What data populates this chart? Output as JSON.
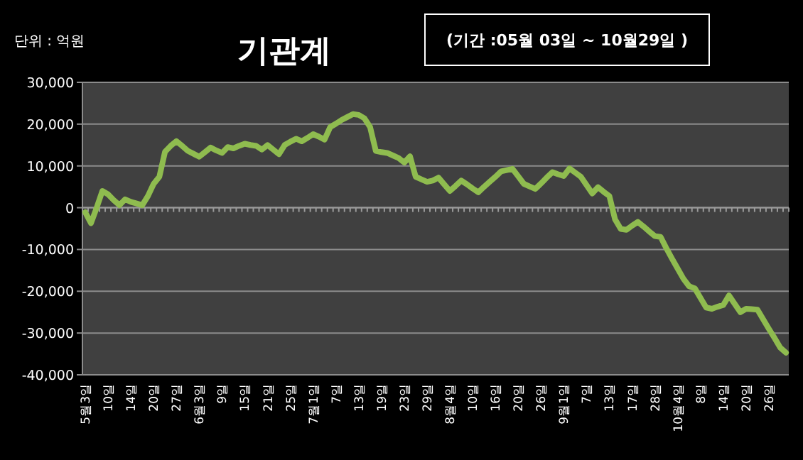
{
  "chart_data": {
    "type": "line",
    "title": "기관계",
    "annotations": [
      "단위 : 억원",
      "(기간 :05월 03일 ~ 10월29일 )"
    ],
    "categories": [
      "5월3일",
      null,
      null,
      null,
      "10일",
      null,
      null,
      null,
      "14일",
      null,
      null,
      null,
      "20일",
      null,
      null,
      null,
      "27일",
      null,
      null,
      null,
      "6월3일",
      null,
      null,
      null,
      "9일",
      null,
      null,
      null,
      "15일",
      null,
      null,
      null,
      "21일",
      null,
      null,
      null,
      "25일",
      null,
      null,
      null,
      "7월1일",
      null,
      null,
      null,
      "7일",
      null,
      null,
      null,
      "13일",
      null,
      null,
      null,
      "19일",
      null,
      null,
      null,
      "23일",
      null,
      null,
      null,
      "29일",
      null,
      null,
      null,
      "8월4일",
      null,
      null,
      null,
      "10일",
      null,
      null,
      null,
      "16일",
      null,
      null,
      null,
      "20일",
      null,
      null,
      null,
      "26일",
      null,
      null,
      null,
      "9월1일",
      null,
      null,
      null,
      "7일",
      null,
      null,
      null,
      "13일",
      null,
      null,
      null,
      "17일",
      null,
      null,
      null,
      "28일",
      null,
      null,
      null,
      "10월4일",
      null,
      null,
      null,
      "8일",
      null,
      null,
      null,
      "14일",
      null,
      null,
      null,
      "20일",
      null,
      null,
      null,
      "26일",
      null,
      null,
      null
    ],
    "series": [
      {
        "color": "#8fbc4f",
        "values": [
          -1100,
          -3700,
          0,
          4000,
          3200,
          1800,
          600,
          2000,
          1400,
          1000,
          600,
          2800,
          5700,
          7400,
          13400,
          14800,
          15900,
          14800,
          13600,
          12900,
          12200,
          13300,
          14400,
          13700,
          13100,
          14500,
          14200,
          14800,
          15300,
          15000,
          14800,
          13900,
          15000,
          13900,
          12800,
          15000,
          15800,
          16500,
          15900,
          16700,
          17600,
          17000,
          16300,
          19300,
          20100,
          21000,
          21700,
          22400,
          22200,
          21400,
          19300,
          13600,
          13300,
          13100,
          12500,
          11900,
          10800,
          12300,
          7400,
          6800,
          6200,
          6500,
          7200,
          5600,
          4000,
          5200,
          6500,
          5600,
          4600,
          3700,
          5000,
          6200,
          7400,
          8700,
          9000,
          9300,
          7500,
          5700,
          5100,
          4500,
          5800,
          7200,
          8500,
          8000,
          7600,
          9400,
          8400,
          7400,
          5400,
          3400,
          4900,
          3800,
          2800,
          -2800,
          -5100,
          -5300,
          -4300,
          -3400,
          -4500,
          -5700,
          -6800,
          -7000,
          -9700,
          -12200,
          -14600,
          -17000,
          -18800,
          -19300,
          -21600,
          -23900,
          -24200,
          -23700,
          -23300,
          -21000,
          -23000,
          -25000,
          -24200,
          -24300,
          -24400,
          -26700,
          -29000,
          -31200,
          -33500,
          -34700
        ]
      }
    ],
    "ylim": [
      -40000,
      30000
    ],
    "yticks": [
      {
        "value": 30000,
        "label": "30,000"
      },
      {
        "value": 20000,
        "label": "20,000"
      },
      {
        "value": 10000,
        "label": "10,000"
      },
      0,
      {
        "value": -10000,
        "label": "-10,000"
      },
      {
        "value": -20000,
        "label": "-20,000"
      },
      {
        "value": -30000,
        "label": "-30,000"
      },
      {
        "value": -40000,
        "label": "-40,000"
      }
    ],
    "grid": "y"
  }
}
